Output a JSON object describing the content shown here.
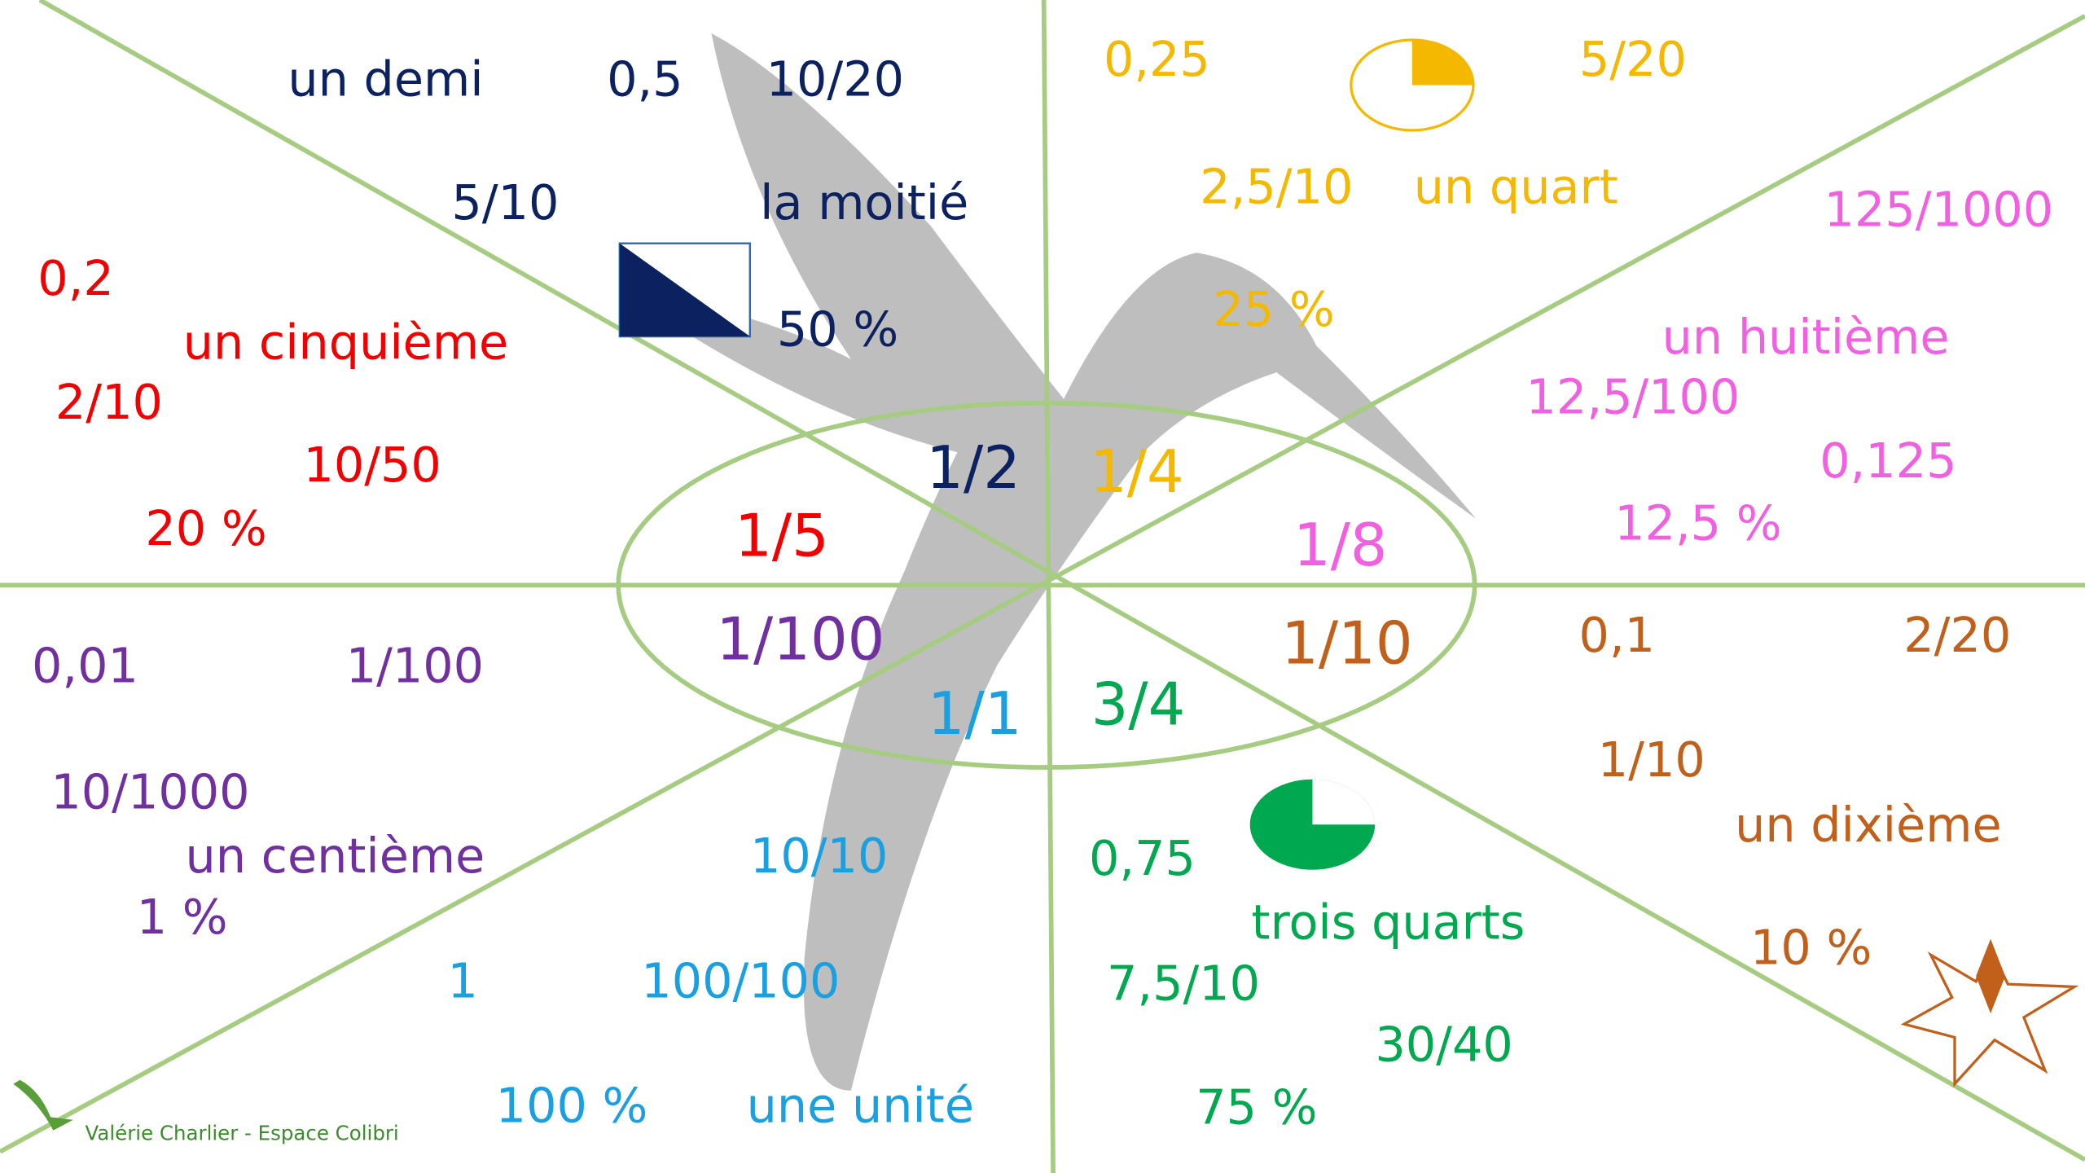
{
  "sectors": [
    {
      "color": "#0b2160",
      "fraction": "1/2",
      "items": [
        "un demi",
        "0,5",
        "10/20",
        "5/10",
        "la moitié",
        "50 %"
      ]
    },
    {
      "color": "#f5b800",
      "fraction": "1/4",
      "items": [
        "0,25",
        "5/20",
        "2,5/10",
        "un quart",
        "25 %"
      ]
    },
    {
      "color": "#f060e0",
      "fraction": "1/8",
      "items": [
        "125/1000",
        "un huitième",
        "12,5/100",
        "0,125",
        "12,5 %"
      ]
    },
    {
      "color": "#c0601a",
      "fraction": "1/10",
      "items": [
        "0,1",
        "2/20",
        "1/10",
        "un dixième",
        "10 %"
      ]
    },
    {
      "color": "#00a84f",
      "fraction": "3/4",
      "items": [
        "0,75",
        "trois quarts",
        "7,5/10",
        "30/40",
        "75 %"
      ]
    },
    {
      "color": "#1aa0e0",
      "fraction": "1/1",
      "items": [
        "10/10",
        "1",
        "100/100",
        "100 %",
        "une unité"
      ]
    },
    {
      "color": "#7030a0",
      "fraction": "1/100",
      "items": [
        "0,01",
        "1/100",
        "10/1000",
        "un centième",
        "1 %"
      ]
    },
    {
      "color": "#f00000",
      "fraction": "1/5",
      "items": [
        "0,2",
        "un cinquième",
        "2/10",
        "10/50",
        "20 %"
      ]
    }
  ],
  "credit": "Valérie Charlier - Espace Colibri"
}
